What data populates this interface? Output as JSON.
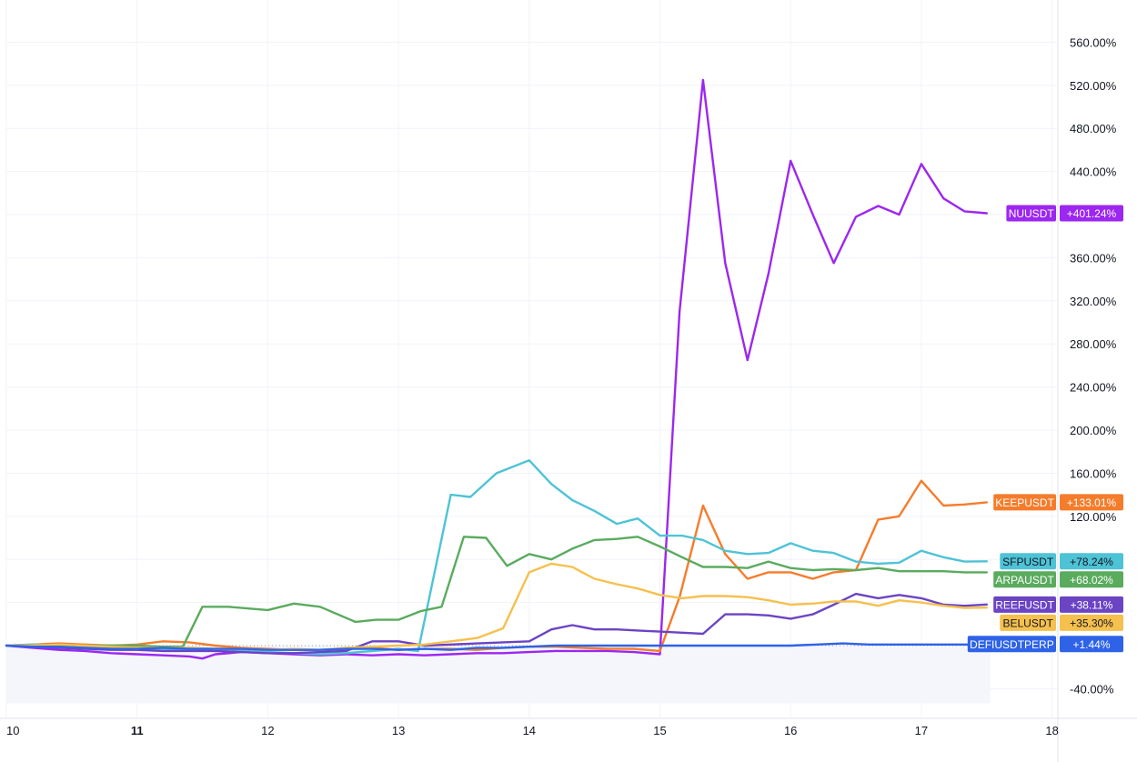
{
  "chart_data": {
    "type": "line",
    "title": "",
    "xlabel": "",
    "ylabel": "",
    "x_tick_labels": [
      "10",
      "11",
      "12",
      "13",
      "14",
      "15",
      "16",
      "17",
      "18"
    ],
    "y_tick_labels": [
      "-40.00%",
      "120.00%",
      "160.00%",
      "200.00%",
      "240.00%",
      "280.00%",
      "320.00%",
      "360.00%",
      "440.00%",
      "480.00%",
      "520.00%",
      "560.00%"
    ],
    "ylim": [
      -70,
      590
    ],
    "xlim": [
      10,
      18.05
    ],
    "grid": true,
    "legend": "right-axis-tags",
    "baseline": 0,
    "series": [
      {
        "name": "NUUSDT",
        "label": "+401.24%",
        "color": "#9c27f0",
        "x": [
          10,
          10.2,
          10.4,
          10.6,
          10.8,
          11,
          11.2,
          11.4,
          11.5,
          11.6,
          11.8,
          12,
          12.2,
          12.4,
          12.6,
          12.8,
          13,
          13.2,
          13.4,
          13.6,
          13.8,
          14,
          14.2,
          14.4,
          14.6,
          14.8,
          15,
          15.15,
          15.33,
          15.5,
          15.67,
          15.83,
          16,
          16.17,
          16.33,
          16.5,
          16.67,
          16.83,
          17,
          17.17,
          17.33,
          17.5
        ],
        "y": [
          0,
          -2,
          -4,
          -5,
          -7,
          -8,
          -9,
          -10,
          -12,
          -8,
          -6,
          -7,
          -8,
          -9,
          -8,
          -9,
          -8,
          -9,
          -8,
          -7,
          -7,
          -6,
          -5,
          -5,
          -5,
          -6,
          -8,
          310,
          525,
          355,
          265,
          345,
          450,
          400,
          355,
          398,
          408,
          400,
          447,
          415,
          403,
          401.24
        ]
      },
      {
        "name": "KEEPUSDT",
        "label": "+133.01%",
        "color": "#f57c2b",
        "x": [
          10,
          10.2,
          10.4,
          10.6,
          10.8,
          11,
          11.2,
          11.4,
          11.6,
          11.8,
          12,
          12.2,
          12.4,
          12.6,
          12.8,
          13,
          13.2,
          13.4,
          13.6,
          13.8,
          14,
          14.2,
          14.4,
          14.6,
          14.8,
          15,
          15.15,
          15.33,
          15.5,
          15.67,
          15.83,
          16,
          16.17,
          16.33,
          16.5,
          16.67,
          16.83,
          17,
          17.17,
          17.33,
          17.5
        ],
        "y": [
          0,
          1,
          2,
          1,
          0,
          1,
          4,
          3,
          0,
          -2,
          -3,
          -4,
          -4,
          -3,
          -2,
          -4,
          -3,
          -3,
          -4,
          -2,
          -1,
          -1,
          -2,
          -3,
          -3,
          -5,
          45,
          130,
          85,
          62,
          68,
          68,
          62,
          68,
          70,
          117,
          120,
          153,
          130,
          131,
          133.01
        ]
      },
      {
        "name": "SFPUSDT",
        "label": "+78.24%",
        "color": "#4ec3d6",
        "x": [
          10,
          10.2,
          10.4,
          10.6,
          10.8,
          11,
          11.2,
          11.4,
          11.6,
          11.8,
          12,
          12.2,
          12.4,
          12.6,
          12.8,
          13,
          13.15,
          13.4,
          13.55,
          13.75,
          14,
          14.17,
          14.33,
          14.5,
          14.67,
          14.83,
          15,
          15.17,
          15.33,
          15.5,
          15.67,
          15.83,
          16,
          16.17,
          16.33,
          16.5,
          16.67,
          16.83,
          17,
          17.17,
          17.33,
          17.5
        ],
        "y": [
          0,
          1,
          0,
          -1,
          -2,
          -3,
          -3,
          -4,
          -5,
          -4,
          -6,
          -7,
          -8,
          -7,
          -5,
          -3,
          -5,
          140,
          138,
          160,
          172,
          150,
          135,
          125,
          113,
          118,
          102,
          102,
          98,
          88,
          85,
          86,
          95,
          88,
          86,
          78,
          76,
          77,
          88,
          82,
          78,
          78.24
        ]
      },
      {
        "name": "ARPAUSDT",
        "label": "+68.02%",
        "color": "#5aab5e",
        "x": [
          10,
          10.2,
          10.4,
          10.6,
          10.8,
          11,
          11.2,
          11.35,
          11.5,
          11.7,
          12,
          12.2,
          12.4,
          12.67,
          12.83,
          13,
          13.17,
          13.33,
          13.5,
          13.67,
          13.83,
          14,
          14.17,
          14.33,
          14.5,
          14.67,
          14.83,
          15,
          15.17,
          15.33,
          15.5,
          15.67,
          15.83,
          16,
          16.17,
          16.33,
          16.5,
          16.67,
          16.83,
          17,
          17.17,
          17.33,
          17.5
        ],
        "y": [
          0,
          0,
          0,
          0,
          0,
          0,
          -1,
          -1,
          36,
          36,
          33,
          39,
          36,
          22,
          24,
          24,
          32,
          36,
          101,
          100,
          74,
          85,
          80,
          90,
          98,
          99,
          101,
          92,
          82,
          73,
          73,
          72,
          78,
          72,
          70,
          71,
          70,
          72,
          69,
          69,
          69,
          68,
          68.02
        ]
      },
      {
        "name": "REEFUSDT",
        "label": "+38.11%",
        "color": "#6b44c4",
        "x": [
          10,
          10.2,
          10.4,
          10.6,
          10.8,
          11,
          11.2,
          11.4,
          11.6,
          11.8,
          12,
          12.2,
          12.4,
          12.6,
          12.8,
          13,
          13.2,
          13.4,
          13.6,
          13.8,
          14,
          14.17,
          14.33,
          14.5,
          14.67,
          14.83,
          15,
          15.17,
          15.33,
          15.5,
          15.67,
          15.83,
          16,
          16.17,
          16.33,
          16.5,
          16.67,
          16.83,
          17,
          17.17,
          17.33,
          17.5
        ],
        "y": [
          0,
          -1,
          -2,
          -3,
          -4,
          -4,
          -5,
          -5,
          -5,
          -6,
          -7,
          -7,
          -6,
          -5,
          4,
          4,
          0,
          1,
          2,
          3,
          4,
          15,
          19,
          15,
          15,
          14,
          13,
          12,
          11,
          29,
          29,
          28,
          25,
          29,
          38,
          48,
          44,
          47,
          44,
          38,
          37,
          38.11
        ]
      },
      {
        "name": "BELUSDT",
        "label": "+35.30%",
        "color": "#f5c04e",
        "x": [
          10,
          10.2,
          10.4,
          10.6,
          10.8,
          11,
          11.2,
          11.4,
          11.6,
          11.8,
          12,
          12.2,
          12.4,
          12.6,
          12.8,
          13,
          13.2,
          13.4,
          13.6,
          13.8,
          14,
          14.17,
          14.33,
          14.5,
          14.67,
          14.83,
          15,
          15.17,
          15.33,
          15.5,
          15.67,
          15.83,
          16,
          16.17,
          16.33,
          16.5,
          16.67,
          16.83,
          17,
          17.17,
          17.33,
          17.5
        ],
        "y": [
          0,
          0,
          1,
          0,
          -1,
          -2,
          -2,
          -2,
          -3,
          -3,
          -4,
          -3,
          -4,
          -2,
          -1,
          0,
          1,
          4,
          7,
          16,
          68,
          76,
          73,
          62,
          57,
          53,
          47,
          44,
          46,
          46,
          45,
          42,
          38,
          39,
          41,
          41,
          37,
          42,
          40,
          37,
          35,
          35.3
        ]
      },
      {
        "name": "DEFIUSDTPERP",
        "label": "+1.44%",
        "color": "#2e63e8",
        "x": [
          10,
          10.2,
          10.4,
          10.6,
          10.8,
          11,
          11.2,
          11.4,
          11.6,
          11.8,
          12,
          12.2,
          12.4,
          12.6,
          12.8,
          13,
          13.2,
          13.4,
          13.6,
          13.8,
          14,
          14.2,
          14.4,
          14.6,
          14.8,
          15,
          15.2,
          15.4,
          15.6,
          15.8,
          16,
          16.2,
          16.4,
          16.6,
          16.8,
          17,
          17.2,
          17.4,
          17.5
        ],
        "y": [
          0,
          -1,
          -1,
          -2,
          -3,
          -3,
          -2,
          -3,
          -3,
          -3,
          -4,
          -4,
          -4,
          -3,
          -3,
          -4,
          -3,
          -4,
          -2,
          -2,
          -1,
          0,
          0,
          0,
          0,
          0,
          0,
          0,
          0,
          0,
          0,
          1,
          2,
          1,
          1,
          1,
          1,
          1,
          1.44
        ]
      }
    ]
  }
}
